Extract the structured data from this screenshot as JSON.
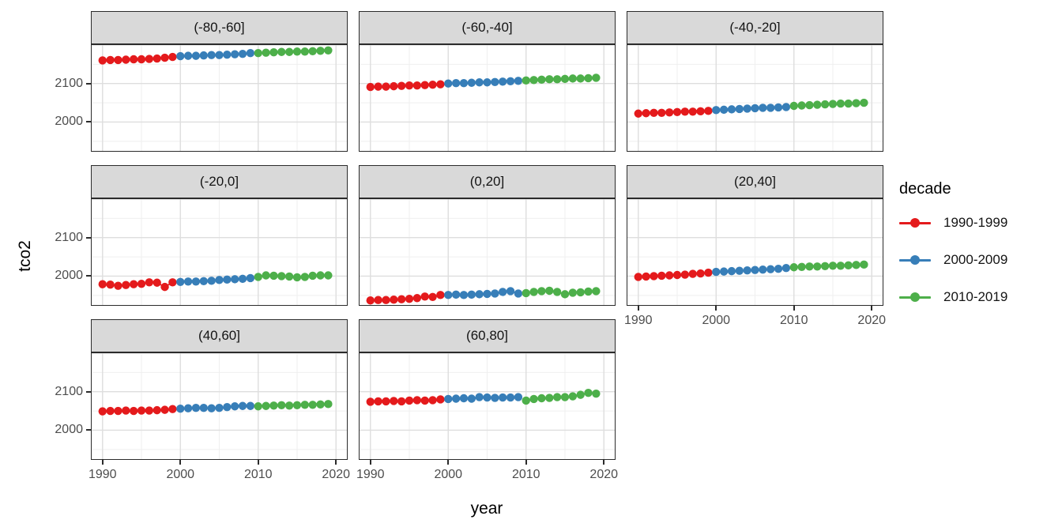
{
  "chart_data": {
    "type": "scatter",
    "title": "",
    "xlabel": "year",
    "ylabel": "tco2",
    "x": [
      1990,
      1991,
      1992,
      1993,
      1994,
      1995,
      1996,
      1997,
      1998,
      1999,
      2000,
      2001,
      2002,
      2003,
      2004,
      2005,
      2006,
      2007,
      2008,
      2009,
      2010,
      2011,
      2012,
      2013,
      2014,
      2015,
      2016,
      2017,
      2018,
      2019
    ],
    "x_domain": [
      1988.5,
      2021.5
    ],
    "y_domain": [
      1923,
      2202
    ],
    "x_major_ticks": [
      1990,
      2000,
      2010,
      2020
    ],
    "x_minor_ticks": [
      1995,
      2005,
      2015
    ],
    "y_major_ticks": [
      2000,
      2100,
      2200
    ],
    "y_labeled_ticks": [
      2100,
      2000
    ],
    "y_minor_ticks": [
      1950,
      2050,
      2150
    ],
    "grid": "on",
    "legend_position": "right",
    "facets": [
      {
        "label": "(-80,-60]",
        "values": [
          2160,
          2161,
          2161,
          2162,
          2163,
          2163,
          2164,
          2165,
          2167,
          2169,
          2171,
          2172,
          2172,
          2173,
          2174,
          2174,
          2175,
          2176,
          2177,
          2179,
          2179,
          2180,
          2181,
          2182,
          2182,
          2183,
          2183,
          2184,
          2185,
          2186
        ]
      },
      {
        "label": "(-60,-40]",
        "values": [
          2091,
          2092,
          2092,
          2093,
          2094,
          2095,
          2095,
          2096,
          2097,
          2098,
          2100,
          2101,
          2101,
          2102,
          2103,
          2103,
          2104,
          2105,
          2106,
          2107,
          2108,
          2109,
          2110,
          2111,
          2111,
          2112,
          2113,
          2113,
          2114,
          2115
        ]
      },
      {
        "label": "(-40,-20]",
        "values": [
          2022,
          2023,
          2024,
          2024,
          2025,
          2026,
          2027,
          2027,
          2028,
          2029,
          2031,
          2032,
          2033,
          2034,
          2035,
          2036,
          2037,
          2037,
          2038,
          2039,
          2042,
          2043,
          2044,
          2045,
          2046,
          2047,
          2048,
          2048,
          2049,
          2050
        ]
      },
      {
        "label": "(-20,0]",
        "values": [
          1979,
          1978,
          1975,
          1977,
          1979,
          1980,
          1984,
          1983,
          1972,
          1984,
          1985,
          1986,
          1986,
          1987,
          1988,
          1990,
          1991,
          1992,
          1993,
          1995,
          1998,
          2002,
          2001,
          2000,
          1999,
          1997,
          1998,
          2001,
          2002,
          2002
        ]
      },
      {
        "label": "(0,20]",
        "values": [
          1937,
          1938,
          1938,
          1939,
          1940,
          1941,
          1943,
          1947,
          1946,
          1951,
          1951,
          1952,
          1951,
          1952,
          1953,
          1954,
          1955,
          1959,
          1961,
          1955,
          1956,
          1959,
          1961,
          1962,
          1959,
          1953,
          1957,
          1958,
          1960,
          1961
        ]
      },
      {
        "label": "(20,40]",
        "values": [
          1998,
          1999,
          2000,
          2001,
          2002,
          2003,
          2004,
          2006,
          2007,
          2009,
          2011,
          2012,
          2013,
          2014,
          2015,
          2016,
          2017,
          2018,
          2019,
          2021,
          2023,
          2024,
          2025,
          2025,
          2026,
          2027,
          2027,
          2028,
          2029,
          2030
        ]
      },
      {
        "label": "(40,60]",
        "values": [
          2049,
          2050,
          2050,
          2051,
          2050,
          2051,
          2051,
          2052,
          2053,
          2055,
          2056,
          2057,
          2058,
          2058,
          2057,
          2058,
          2060,
          2062,
          2063,
          2063,
          2062,
          2063,
          2064,
          2065,
          2064,
          2065,
          2066,
          2066,
          2067,
          2068
        ]
      },
      {
        "label": "(60,80]",
        "values": [
          2074,
          2075,
          2075,
          2076,
          2075,
          2077,
          2078,
          2077,
          2078,
          2080,
          2081,
          2082,
          2083,
          2082,
          2086,
          2085,
          2084,
          2085,
          2085,
          2086,
          2077,
          2081,
          2083,
          2084,
          2086,
          2086,
          2088,
          2092,
          2097,
          2095
        ]
      }
    ],
    "series_groups": [
      {
        "label": "1990-1999",
        "color": "#E41A1C",
        "year_range": [
          1990,
          1999
        ]
      },
      {
        "label": "2000-2009",
        "color": "#377EB8",
        "year_range": [
          2000,
          2009
        ]
      },
      {
        "label": "2010-2019",
        "color": "#4DAF4A",
        "year_range": [
          2010,
          2019
        ]
      }
    ]
  },
  "legend": {
    "title": "decade",
    "entries": [
      {
        "label": "1990-1999",
        "color": "#E41A1C"
      },
      {
        "label": "2000-2009",
        "color": "#377EB8"
      },
      {
        "label": "2010-2019",
        "color": "#4DAF4A"
      }
    ]
  },
  "colors": {
    "strip_bg": "#d9d9d9",
    "panel_border": "#2b2b2b",
    "grid_major": "#dedede",
    "grid_minor": "#efefef",
    "tick_text": "#4d4d4d"
  }
}
